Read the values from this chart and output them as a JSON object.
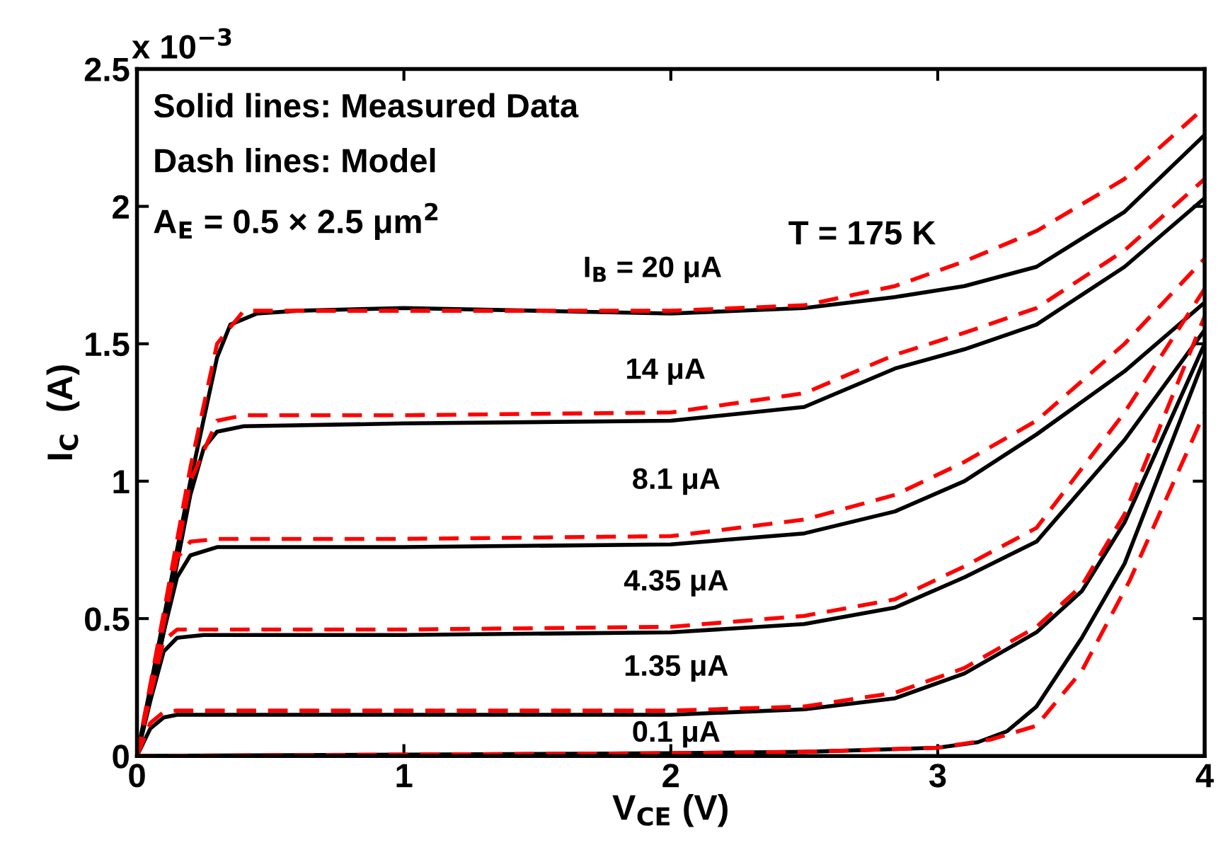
{
  "chart_data": {
    "type": "line",
    "xlabel": "V$_{CE}$ (V)",
    "ylabel": "I$_{C}$  (A)",
    "xlim": [
      0,
      4
    ],
    "ylim": [
      0,
      2.5
    ],
    "xticks": [
      0,
      1,
      2,
      3,
      4
    ],
    "yticks": [
      0,
      0.5,
      1,
      1.5,
      2,
      2.5
    ],
    "grid": false,
    "legend": false,
    "marker": "none",
    "series": [
      {
        "color": "#000000",
        "line_style": "solid",
        "x": [
          0,
          0.1,
          0.2,
          0.3,
          0.35,
          0.45,
          0.6,
          1,
          1.5,
          2,
          2.5,
          2.84,
          3.1,
          3.37,
          3.7,
          4
        ],
        "values": [
          0,
          0.5,
          1.0,
          1.45,
          1.57,
          1.61,
          1.62,
          1.63,
          1.62,
          1.61,
          1.63,
          1.67,
          1.71,
          1.78,
          1.98,
          2.26
        ]
      },
      {
        "color": "#ff0000",
        "line_style": "dashed",
        "x": [
          0,
          0.1,
          0.2,
          0.3,
          0.4,
          0.6,
          1,
          1.5,
          2,
          2.5,
          2.84,
          3.1,
          3.37,
          3.7,
          4
        ],
        "values": [
          0,
          0.52,
          1.05,
          1.5,
          1.62,
          1.62,
          1.62,
          1.62,
          1.62,
          1.64,
          1.71,
          1.8,
          1.91,
          2.1,
          2.36
        ]
      },
      {
        "color": "#000000",
        "line_style": "solid",
        "x": [
          0,
          0.1,
          0.2,
          0.25,
          0.3,
          0.4,
          1,
          2,
          2.5,
          2.84,
          3.1,
          3.37,
          3.7,
          4
        ],
        "values": [
          0,
          0.45,
          0.95,
          1.12,
          1.18,
          1.2,
          1.21,
          1.22,
          1.27,
          1.41,
          1.48,
          1.57,
          1.78,
          2.03
        ]
      },
      {
        "color": "#ff0000",
        "line_style": "dashed",
        "x": [
          0,
          0.1,
          0.2,
          0.3,
          0.4,
          1,
          2,
          2.5,
          2.84,
          3.1,
          3.37,
          3.7,
          4
        ],
        "values": [
          0,
          0.48,
          1.0,
          1.22,
          1.24,
          1.24,
          1.25,
          1.32,
          1.46,
          1.54,
          1.63,
          1.84,
          2.1
        ]
      },
      {
        "color": "#000000",
        "line_style": "solid",
        "x": [
          0,
          0.1,
          0.15,
          0.2,
          0.3,
          1,
          2,
          2.5,
          2.84,
          3.1,
          3.37,
          3.7,
          4
        ],
        "values": [
          0,
          0.45,
          0.65,
          0.73,
          0.76,
          0.76,
          0.77,
          0.81,
          0.89,
          1.0,
          1.17,
          1.4,
          1.65
        ]
      },
      {
        "color": "#ff0000",
        "line_style": "dashed",
        "x": [
          0,
          0.1,
          0.15,
          0.2,
          0.3,
          1,
          2,
          2.5,
          2.84,
          3.1,
          3.37,
          3.7,
          4
        ],
        "values": [
          0,
          0.48,
          0.72,
          0.78,
          0.79,
          0.79,
          0.8,
          0.86,
          0.95,
          1.07,
          1.22,
          1.5,
          1.81
        ]
      },
      {
        "color": "#000000",
        "line_style": "solid",
        "x": [
          0,
          0.05,
          0.1,
          0.15,
          0.25,
          1,
          2,
          2.5,
          2.84,
          3.1,
          3.37,
          3.7,
          4
        ],
        "values": [
          0,
          0.2,
          0.38,
          0.43,
          0.44,
          0.44,
          0.45,
          0.48,
          0.54,
          0.65,
          0.78,
          1.15,
          1.55
        ]
      },
      {
        "color": "#ff0000",
        "line_style": "dashed",
        "x": [
          0,
          0.05,
          0.1,
          0.15,
          0.25,
          1,
          2,
          2.5,
          2.84,
          3.1,
          3.37,
          3.7,
          4
        ],
        "values": [
          0,
          0.22,
          0.42,
          0.46,
          0.46,
          0.46,
          0.47,
          0.51,
          0.57,
          0.69,
          0.83,
          1.25,
          1.7
        ]
      },
      {
        "color": "#000000",
        "line_style": "solid",
        "x": [
          0,
          0.05,
          0.1,
          0.15,
          1,
          2,
          2.5,
          2.84,
          3.1,
          3.37,
          3.54,
          3.7,
          4
        ],
        "values": [
          0,
          0.1,
          0.14,
          0.15,
          0.15,
          0.15,
          0.17,
          0.21,
          0.3,
          0.45,
          0.6,
          0.85,
          1.5
        ]
      },
      {
        "color": "#ff0000",
        "line_style": "dashed",
        "x": [
          0,
          0.05,
          0.1,
          0.15,
          1,
          2,
          2.5,
          2.84,
          3.1,
          3.37,
          3.54,
          3.7,
          4
        ],
        "values": [
          0,
          0.12,
          0.16,
          0.165,
          0.165,
          0.165,
          0.18,
          0.23,
          0.32,
          0.47,
          0.62,
          0.88,
          1.6
        ]
      },
      {
        "color": "#000000",
        "line_style": "solid",
        "x": [
          0,
          1,
          2,
          2.5,
          3,
          3.15,
          3.26,
          3.37,
          3.54,
          3.7,
          4
        ],
        "values": [
          0,
          0.005,
          0.01,
          0.015,
          0.03,
          0.05,
          0.09,
          0.18,
          0.43,
          0.7,
          1.45
        ]
      },
      {
        "color": "#ff0000",
        "line_style": "dashed",
        "x": [
          0,
          1,
          2,
          2.5,
          3,
          3.2,
          3.37,
          3.54,
          3.72,
          4
        ],
        "values": [
          0,
          0.005,
          0.01,
          0.015,
          0.03,
          0.06,
          0.11,
          0.31,
          0.64,
          1.25
        ]
      }
    ],
    "annotations": [
      "x 10$^{−3}$",
      "Solid lines: Measured Data",
      "Dash lines: Model",
      "A$_{E}$ = 0.5 × 2.5 μm$^{2}$",
      "T = 175 K",
      "I$_{B}$ = 20 μA",
      "14 μA",
      "8.1 μA",
      "4.35 μA",
      "1.35 μA",
      "0.1 μA"
    ]
  }
}
